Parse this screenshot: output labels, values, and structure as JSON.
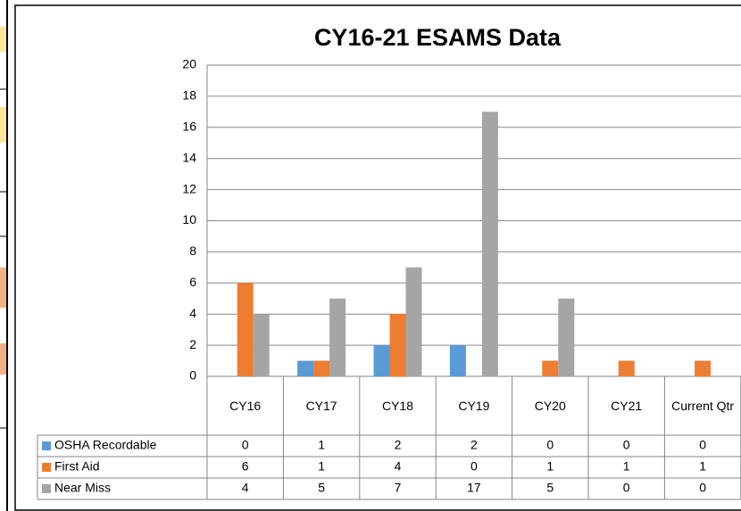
{
  "chart_data": {
    "type": "bar",
    "title": "CY16-21  ESAMS Data",
    "categories": [
      "CY16",
      "CY17",
      "CY18",
      "CY19",
      "CY20",
      "CY21",
      "Current Qtr"
    ],
    "series": [
      {
        "name": "OSHA Recordable",
        "color": "#5b9bd5",
        "values": [
          0,
          1,
          2,
          2,
          0,
          0,
          0
        ]
      },
      {
        "name": "First Aid",
        "color": "#ed7d31",
        "values": [
          6,
          1,
          4,
          0,
          1,
          1,
          1
        ]
      },
      {
        "name": "Near Miss",
        "color": "#a5a5a5",
        "values": [
          4,
          5,
          7,
          17,
          5,
          0,
          0
        ]
      }
    ],
    "ylim": [
      0,
      20
    ],
    "yticks": [
      0,
      2,
      4,
      6,
      8,
      10,
      12,
      14,
      16,
      18,
      20
    ],
    "grid": true
  }
}
